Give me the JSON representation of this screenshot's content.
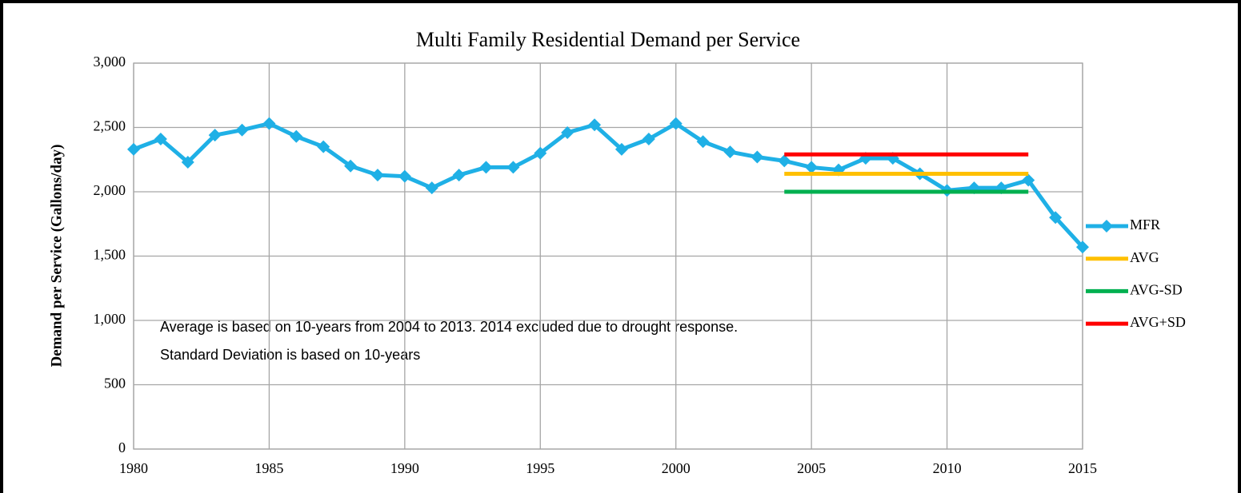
{
  "chart_data": {
    "type": "line",
    "title": "Multi Family Residential Demand per Service",
    "y_label": "Demand per Service (Gallons/day)",
    "annotations": [
      "Average is based on 10-years from 2004 to 2013. 2014 excluded due to drought response.",
      "Standard Deviation is based on 10-years"
    ],
    "xlim": [
      1980,
      2015
    ],
    "xticks": [
      1980,
      1985,
      1990,
      1995,
      2000,
      2005,
      2010,
      2015
    ],
    "ylim": [
      0,
      3000
    ],
    "yticks": [
      0,
      500,
      {
        "value": 1000,
        "label": "1,000"
      },
      {
        "value": 1500,
        "label": "1,500"
      },
      {
        "value": 2000,
        "label": "2,000"
      },
      {
        "value": 2500,
        "label": "2,500"
      },
      {
        "value": 3000,
        "label": "3,000"
      }
    ],
    "grid": true,
    "legend": "right",
    "series": [
      {
        "name": "MFR",
        "color": "#1fb0e6",
        "marker": "diamond",
        "x": [
          1980,
          1981,
          1982,
          1983,
          1984,
          1985,
          1986,
          1987,
          1988,
          1989,
          1990,
          1991,
          1992,
          1993,
          1994,
          1995,
          1996,
          1997,
          1998,
          1999,
          2000,
          2001,
          2002,
          2003,
          2004,
          2005,
          2006,
          2007,
          2008,
          2009,
          2010,
          2011,
          2012,
          2013,
          2014,
          2015
        ],
        "values": [
          2330,
          2410,
          2230,
          2440,
          2480,
          2530,
          2430,
          2350,
          2200,
          2130,
          2120,
          2030,
          2130,
          2190,
          2190,
          2300,
          2460,
          2520,
          2330,
          2410,
          2530,
          2390,
          2310,
          2270,
          2240,
          2190,
          2170,
          2260,
          2260,
          2140,
          2010,
          2030,
          2030,
          2090,
          1800,
          1570
        ]
      },
      {
        "name": "AVG",
        "color": "#ffc000",
        "x": [
          2004,
          2013
        ],
        "values": [
          2140,
          2140
        ]
      },
      {
        "name": "AVG-SD",
        "color": "#00b050",
        "x": [
          2004,
          2013
        ],
        "values": [
          2000,
          2000
        ]
      },
      {
        "name": "AVG+SD",
        "color": "#ff0000",
        "x": [
          2004,
          2013
        ],
        "values": [
          2290,
          2290
        ]
      }
    ]
  }
}
